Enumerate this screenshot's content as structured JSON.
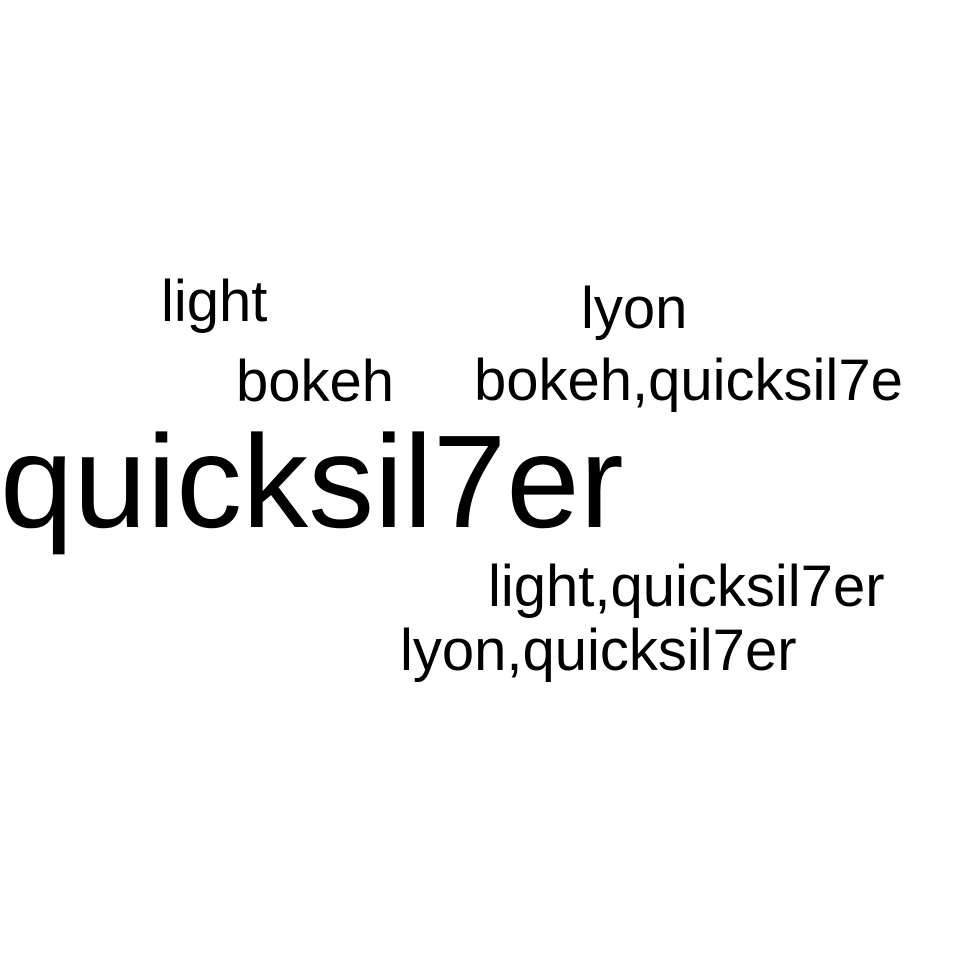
{
  "words": [
    {
      "text": "light"
    },
    {
      "text": "lyon"
    },
    {
      "text": "bokeh"
    },
    {
      "text": "bokeh,quicksil7e"
    },
    {
      "text": "quicksil7er"
    },
    {
      "text": "light,quicksil7er"
    },
    {
      "text": "lyon,quicksil7er"
    }
  ],
  "colors": {
    "background": "#ffffff",
    "text": "#000000"
  }
}
